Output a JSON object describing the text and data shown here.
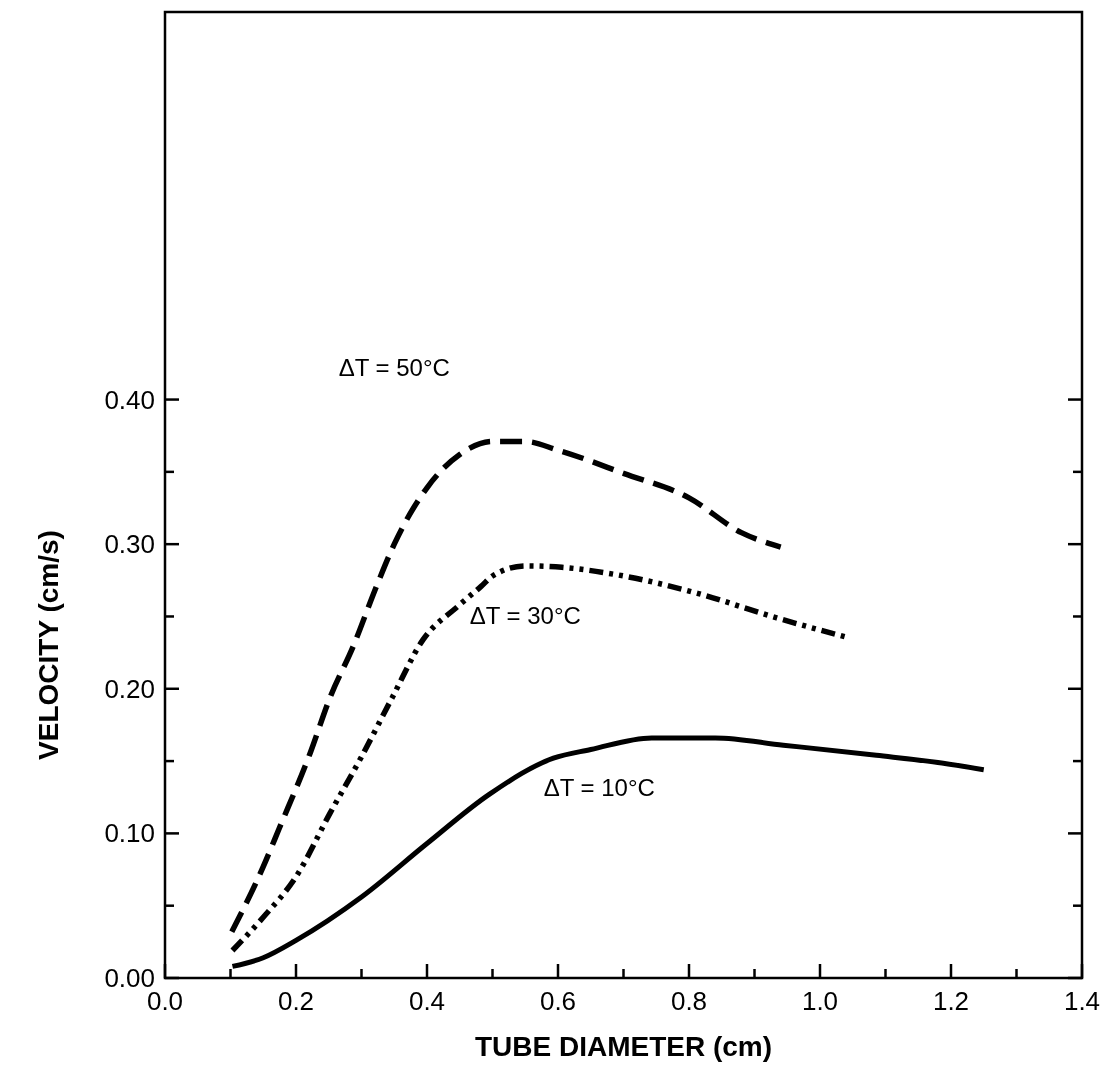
{
  "chart_data": {
    "type": "line",
    "xlabel": "TUBE DIAMETER (cm)",
    "ylabel": "VELOCITY (cm/s)",
    "xlim": [
      0,
      1.4
    ],
    "ylim": [
      0,
      0.668
    ],
    "xticks": [
      {
        "value": 0,
        "label": "0.0"
      },
      {
        "value": 0.1,
        "label": null
      },
      {
        "value": 0.2,
        "label": "0.2"
      },
      {
        "value": 0.3,
        "label": null
      },
      {
        "value": 0.4,
        "label": "0.4"
      },
      {
        "value": 0.5,
        "label": null
      },
      {
        "value": 0.6,
        "label": "0.6"
      },
      {
        "value": 0.7,
        "label": null
      },
      {
        "value": 0.8,
        "label": "0.8"
      },
      {
        "value": 0.9,
        "label": null
      },
      {
        "value": 1,
        "label": "1.0"
      },
      {
        "value": 1.1,
        "label": null
      },
      {
        "value": 1.2,
        "label": "1.2"
      },
      {
        "value": 1.3,
        "label": null
      },
      {
        "value": 1.4,
        "label": "1.4"
      }
    ],
    "yticks": [
      {
        "value": 0,
        "label": "0.00"
      },
      {
        "value": 0.05,
        "label": null
      },
      {
        "value": 0.1,
        "label": "0.10"
      },
      {
        "value": 0.15,
        "label": null
      },
      {
        "value": 0.2,
        "label": "0.20"
      },
      {
        "value": 0.25,
        "label": null
      },
      {
        "value": 0.3,
        "label": "0.30"
      },
      {
        "value": 0.35,
        "label": null
      },
      {
        "value": 0.4,
        "label": "0.40"
      }
    ],
    "grid": false,
    "series": [
      {
        "name": "ΔT = 50°C",
        "color": "#000000",
        "line_style": "dashed",
        "x": [
          0.102,
          0.15,
          0.174,
          0.222,
          0.252,
          0.287,
          0.323,
          0.35,
          0.4,
          0.45,
          0.5,
          0.55,
          0.6,
          0.7,
          0.8,
          0.88,
          0.94
        ],
        "values": [
          0.032,
          0.077,
          0.103,
          0.156,
          0.194,
          0.229,
          0.271,
          0.3,
          0.339,
          0.362,
          0.371,
          0.371,
          0.365,
          0.349,
          0.332,
          0.308,
          0.298
        ]
      },
      {
        "name": "ΔT = 30°C",
        "color": "#000000",
        "line_style": "dashdot",
        "x": [
          0.103,
          0.15,
          0.2,
          0.252,
          0.3,
          0.347,
          0.394,
          0.447,
          0.483,
          0.5,
          0.55,
          0.606,
          0.688,
          0.813,
          0.934,
          1.038
        ],
        "values": [
          0.019,
          0.042,
          0.07,
          0.114,
          0.153,
          0.194,
          0.234,
          0.257,
          0.271,
          0.278,
          0.285,
          0.284,
          0.279,
          0.266,
          0.249,
          0.236
        ]
      },
      {
        "name": "ΔT = 10°C",
        "color": "#000000",
        "line_style": "solid",
        "x": [
          0.103,
          0.15,
          0.2,
          0.3,
          0.4,
          0.495,
          0.593,
          0.65,
          0.743,
          0.84,
          0.944,
          1.086,
          1.18,
          1.25
        ],
        "values": [
          0.008,
          0.014,
          0.026,
          0.056,
          0.093,
          0.127,
          0.152,
          0.158,
          0.166,
          0.166,
          0.161,
          0.154,
          0.149,
          0.144
        ]
      }
    ]
  }
}
